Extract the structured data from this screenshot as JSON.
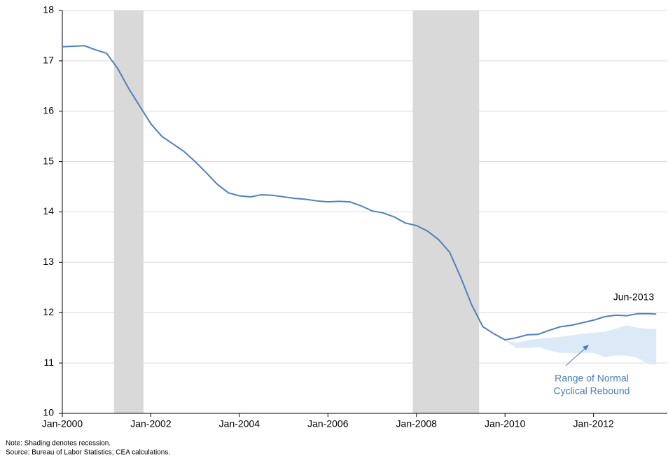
{
  "chart_data": {
    "type": "line",
    "x": [
      "2000-01",
      "2000-04",
      "2000-07",
      "2000-10",
      "2001-01",
      "2001-04",
      "2001-07",
      "2001-10",
      "2002-01",
      "2002-04",
      "2002-07",
      "2002-10",
      "2003-01",
      "2003-04",
      "2003-07",
      "2003-10",
      "2004-01",
      "2004-04",
      "2004-07",
      "2004-10",
      "2005-01",
      "2005-04",
      "2005-07",
      "2005-10",
      "2006-01",
      "2006-04",
      "2006-07",
      "2006-10",
      "2007-01",
      "2007-04",
      "2007-07",
      "2007-10",
      "2008-01",
      "2008-04",
      "2008-07",
      "2008-10",
      "2009-01",
      "2009-04",
      "2009-07",
      "2009-10",
      "2010-01",
      "2010-04",
      "2010-07",
      "2010-10",
      "2011-01",
      "2011-04",
      "2011-07",
      "2011-10",
      "2012-01",
      "2012-04",
      "2012-07",
      "2012-10",
      "2013-01",
      "2013-04",
      "2013-06"
    ],
    "series": [
      {
        "color": "#4f81bd",
        "values": [
          17.28,
          17.29,
          17.3,
          17.22,
          17.15,
          16.85,
          16.45,
          16.1,
          15.75,
          15.5,
          15.35,
          15.2,
          15.0,
          14.78,
          14.55,
          14.38,
          14.32,
          14.3,
          14.34,
          14.33,
          14.3,
          14.27,
          14.25,
          14.22,
          14.2,
          14.21,
          14.2,
          14.12,
          14.02,
          13.98,
          13.9,
          13.78,
          13.73,
          13.62,
          13.45,
          13.2,
          12.7,
          12.15,
          11.72,
          11.58,
          11.46,
          11.5,
          11.56,
          11.57,
          11.65,
          11.72,
          11.75,
          11.8,
          11.85,
          11.92,
          11.95,
          11.94,
          11.98,
          11.98,
          11.97
        ]
      }
    ],
    "range_band": {
      "color": "#dce9f7",
      "x": [
        "2010-01",
        "2010-04",
        "2010-07",
        "2010-10",
        "2011-01",
        "2011-04",
        "2011-07",
        "2011-10",
        "2012-01",
        "2012-04",
        "2012-07",
        "2012-10",
        "2013-01",
        "2013-04",
        "2013-06"
      ],
      "lower": [
        11.45,
        11.3,
        11.3,
        11.32,
        11.25,
        11.2,
        11.2,
        11.2,
        11.2,
        11.12,
        11.15,
        11.15,
        11.1,
        10.98,
        10.97
      ],
      "upper": [
        11.45,
        11.4,
        11.45,
        11.48,
        11.5,
        11.52,
        11.55,
        11.58,
        11.6,
        11.62,
        11.68,
        11.75,
        11.7,
        11.68,
        11.68
      ]
    },
    "recessions": {
      "color": "#d9d9d9",
      "periods": [
        {
          "start": "2001-03",
          "end": "2001-11"
        },
        {
          "start": "2007-12",
          "end": "2009-06"
        }
      ]
    },
    "xlim": [
      "2000-01",
      "2013-09"
    ],
    "xticks": [
      {
        "value": "2000-01",
        "label": "Jan-2000"
      },
      {
        "value": "2002-01",
        "label": "Jan-2002"
      },
      {
        "value": "2004-01",
        "label": "Jan-2004"
      },
      {
        "value": "2006-01",
        "label": "Jan-2006"
      },
      {
        "value": "2008-01",
        "label": "Jan-2008"
      },
      {
        "value": "2010-01",
        "label": "Jan-2010"
      },
      {
        "value": "2012-01",
        "label": "Jan-2012"
      }
    ],
    "ylim": [
      10,
      18
    ],
    "yticks": [
      10,
      11,
      12,
      13,
      14,
      15,
      16,
      17,
      18
    ],
    "grid": true,
    "end_label": "Jun-2013",
    "band_label": [
      "Range of Normal",
      "Cyclical Rebound"
    ],
    "notes": [
      "Note: Shading denotes recession.",
      "Source: Bureau of Labor Statistics; CEA calculations."
    ]
  }
}
